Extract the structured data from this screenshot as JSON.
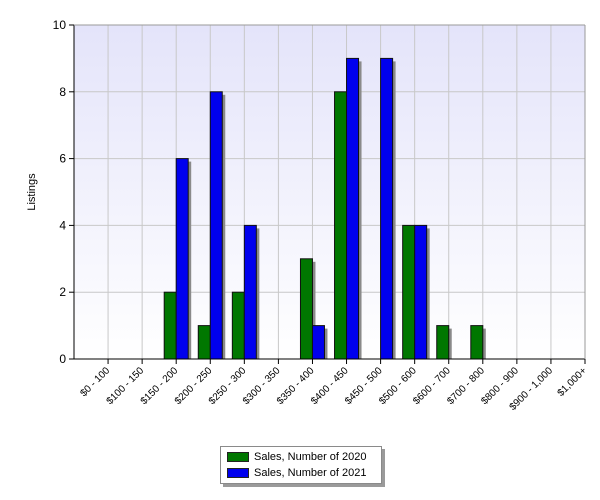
{
  "chart_data": {
    "type": "bar",
    "title": "",
    "xlabel": "",
    "ylabel": "Listings",
    "ylim": [
      0,
      10
    ],
    "yticks": [
      "0",
      "2",
      "4",
      "6",
      "8",
      "10"
    ],
    "grid": true,
    "legend_position": "bottom",
    "categories": [
      "$0 - 100",
      "$100 - 150",
      "$150 - 200",
      "$200 - 250",
      "$250 - 300",
      "$300 - 350",
      "$350 - 400",
      "$400 - 450",
      "$450 - 500",
      "$500 - 600",
      "$600 - 700",
      "$700 - 800",
      "$800 - 900",
      "$900 - 1,000",
      "$1,000+"
    ],
    "series": [
      {
        "name": "Sales, Number of 2020",
        "color": "#007700",
        "values": [
          0,
          0,
          2,
          1,
          2,
          0,
          3,
          8,
          0,
          4,
          1,
          1,
          0,
          0,
          0
        ]
      },
      {
        "name": "Sales, Number of 2021",
        "color": "#0000ee",
        "values": [
          0,
          0,
          6,
          8,
          4,
          0,
          1,
          9,
          9,
          4,
          0,
          0,
          0,
          0,
          0
        ]
      }
    ]
  }
}
